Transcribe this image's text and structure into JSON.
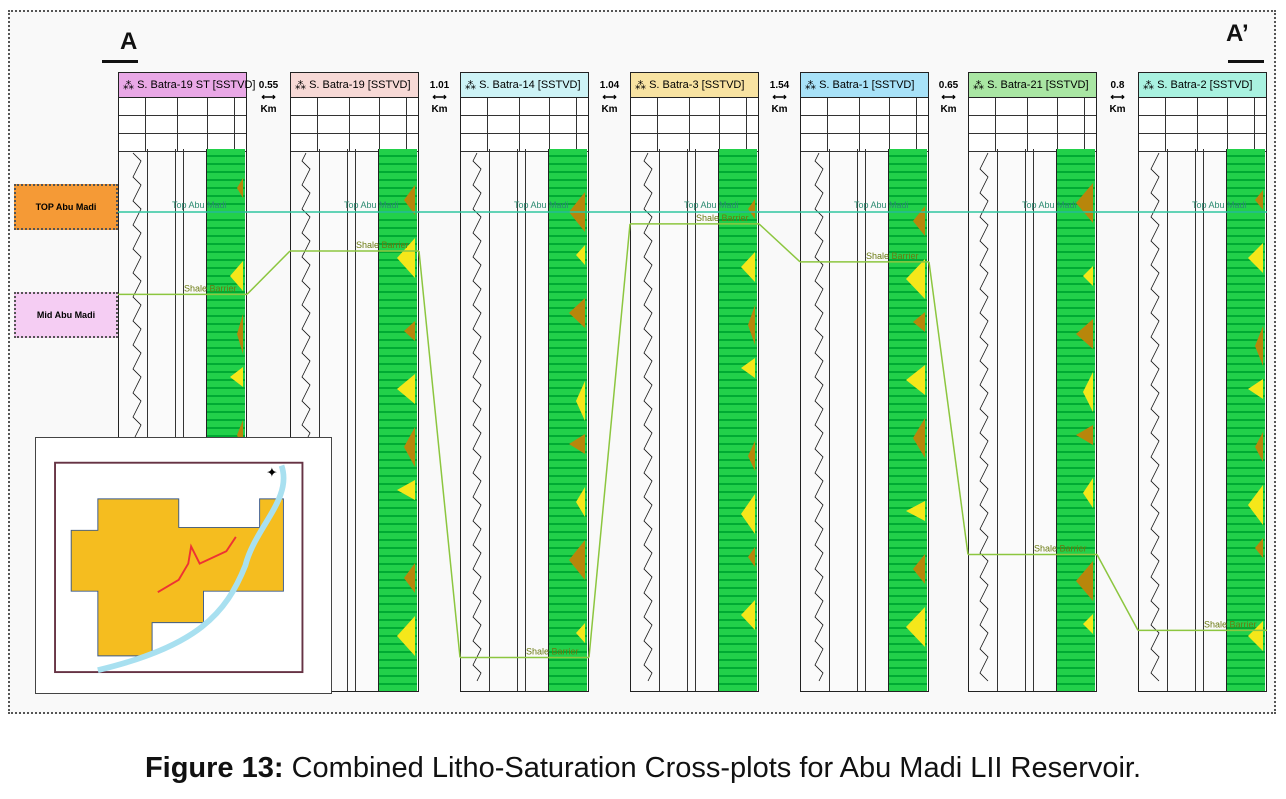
{
  "section": {
    "start_label": "A",
    "end_label": "A’"
  },
  "wells": [
    {
      "name": "S. Batra-19 ST [SSTVD]",
      "color": "#e9a8e6",
      "shale_depth_frac": 0.27
    },
    {
      "name": "S. Batra-19 [SSTVD]",
      "color": "#f7d9d6",
      "shale_depth_frac": 0.19
    },
    {
      "name": "S. Batra-14 [SSTVD]",
      "color": "#cdf3f6",
      "shale_depth_frac": 0.94
    },
    {
      "name": "S. Batra-3 [SSTVD]",
      "color": "#f8e3a2",
      "shale_depth_frac": 0.14
    },
    {
      "name": "S. Batra-1 [SSTVD]",
      "color": "#a8e2f8",
      "shale_depth_frac": 0.21
    },
    {
      "name": "S. Batra-21 [SSTVD]",
      "color": "#a9e6a3",
      "shale_depth_frac": 0.75
    },
    {
      "name": "S. Batra-2 [SSTVD]",
      "color": "#a9f2e0",
      "shale_depth_frac": 0.89
    }
  ],
  "distances": [
    {
      "value": "0.55",
      "unit": "Km"
    },
    {
      "value": "1.01",
      "unit": "Km"
    },
    {
      "value": "1.04",
      "unit": "Km"
    },
    {
      "value": "1.54",
      "unit": "Km"
    },
    {
      "value": "0.65",
      "unit": "Km"
    },
    {
      "value": "0.8",
      "unit": "Km"
    }
  ],
  "markers": {
    "top": "Top Abu Madi",
    "shale": "Shale Barrier",
    "top_color": "#2fc6a0",
    "shale_color": "#8cc63f"
  },
  "zone_labels": [
    {
      "text": "TOP Abu Madi",
      "color": "#f59a36"
    },
    {
      "text": "Mid Abu Madi",
      "color": "#f5cdf3"
    }
  ],
  "colors": {
    "litho_green": "#22d04a",
    "sand_yellow": "#f5e71a",
    "shale_brown": "#b8860b",
    "field": "#f5bd1f",
    "river": "#a8e0f0"
  },
  "caption": {
    "label": "Figure 13:",
    "text": " Combined Litho-Saturation Cross-plots for Abu Madi LII Reservoir."
  }
}
